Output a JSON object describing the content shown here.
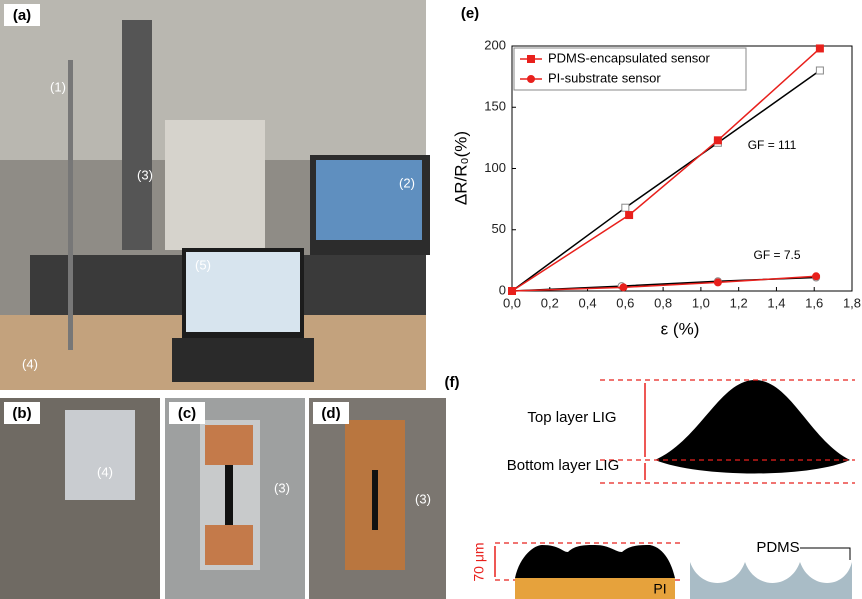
{
  "panels": {
    "a": {
      "label": "(a)",
      "callouts": [
        "(1)",
        "(3)",
        "(2)",
        "(5)",
        "(4)"
      ]
    },
    "b": {
      "label": "(b)",
      "callouts": [
        "(4)"
      ]
    },
    "c": {
      "label": "(c)",
      "callouts": [
        "(3)"
      ]
    },
    "d": {
      "label": "(d)",
      "callouts": [
        "(3)"
      ]
    }
  },
  "chart_data": {
    "type": "line",
    "panel_label": "(e)",
    "xlabel": "ε (%)",
    "ylabel": "ΔR/R₀(%)",
    "xlim": [
      0,
      1.8
    ],
    "xticks": [
      {
        "value": 0,
        "label": "0,0"
      },
      {
        "value": 0.2,
        "label": "0,2"
      },
      {
        "value": 0.4,
        "label": "0,4"
      },
      {
        "value": 0.6,
        "label": "0,6"
      },
      {
        "value": 0.8,
        "label": "0,8"
      },
      {
        "value": 1,
        "label": "1,0"
      },
      {
        "value": 1.2,
        "label": "1,2"
      },
      {
        "value": 1.4,
        "label": "1,4"
      },
      {
        "value": 1.6,
        "label": "1,6"
      },
      {
        "value": 1.8,
        "label": "1,8"
      }
    ],
    "ylim": [
      0,
      200
    ],
    "yticks": [
      0,
      50,
      100,
      150,
      200
    ],
    "legend": "upper left",
    "series": [
      {
        "name": "PDMS-encapsulated sensor",
        "color": "#e8201c",
        "marker": "square",
        "x": [
          0,
          0.62,
          1.09,
          1.63
        ],
        "values": [
          0,
          62,
          123,
          198
        ]
      },
      {
        "name": "PI-substrate sensor",
        "color": "#e8201c",
        "marker": "circle",
        "x": [
          0,
          0.59,
          1.09,
          1.61
        ],
        "values": [
          0,
          3,
          7,
          12
        ]
      }
    ],
    "fits": [
      {
        "color": "#000000",
        "marker": "square",
        "x": [
          0,
          0.6,
          1.09,
          1.63
        ],
        "values": [
          0,
          68,
          121,
          180
        ]
      },
      {
        "color": "#000000",
        "marker": "circle",
        "x": [
          0,
          0.58,
          1.09,
          1.61
        ],
        "values": [
          0,
          4,
          8,
          11
        ]
      }
    ],
    "annotations": [
      "GF = 111",
      "GF = 7.5"
    ]
  },
  "diagram": {
    "label": "(f)",
    "top_layer": "Top layer LIG",
    "bottom_layer": "Bottom layer LIG",
    "thickness": "70 μm",
    "substrate": "PI",
    "encapsulation": "PDMS"
  }
}
